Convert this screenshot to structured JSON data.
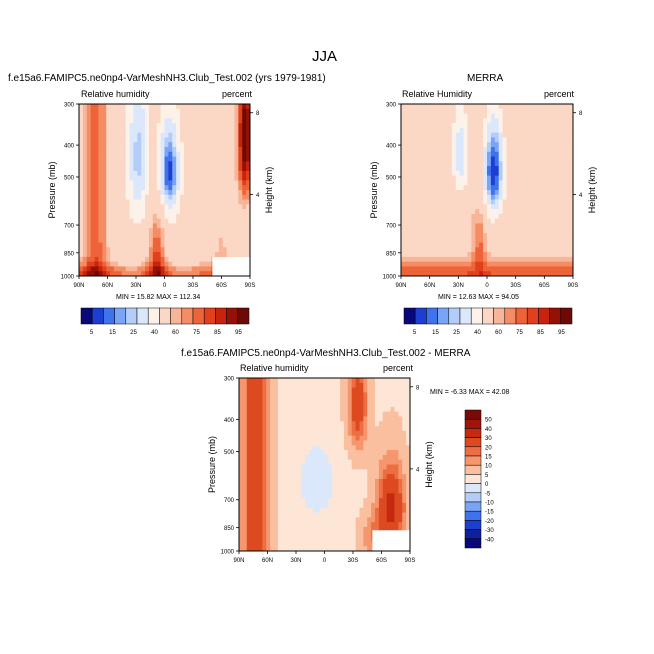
{
  "page_title": "JJA",
  "chart_data": [
    {
      "type": "heatmap",
      "name": "model",
      "title": "f.e15a6.FAMIPC5.ne0np4-VarMeshNH3.Club_Test.002 (yrs 1979-1981)",
      "left_label": "Relative humidity",
      "right_label": "percent",
      "ylabel": "Pressure (mb)",
      "y2label": "Height (km)",
      "x_ticks": [
        "90N",
        "60N",
        "30N",
        "0",
        "30S",
        "60S",
        "90S"
      ],
      "y_ticks": [
        "300",
        "400",
        "500",
        "700",
        "850",
        "1000"
      ],
      "y2_ticks": [
        "8",
        "4"
      ],
      "min_max_text": "MIN = 15.82   MAX = 112.34",
      "min": 15.82,
      "max": 112.34,
      "colorbar_labels": [
        "5",
        "15",
        "25",
        "40",
        "60",
        "75",
        "85",
        "95"
      ],
      "colors": [
        "#08087a",
        "#1d3fd1",
        "#3f73ec",
        "#7aa4f5",
        "#b4cdf8",
        "#dbe8fb",
        "#fdf2ea",
        "#fbd7c5",
        "#f8b598",
        "#f48c64",
        "#ee6338",
        "#e0401b",
        "#c8230e",
        "#951005",
        "#6e0a06"
      ]
    },
    {
      "type": "heatmap",
      "name": "merra",
      "title": "MERRA",
      "left_label": "Relative Humidity",
      "right_label": "percent",
      "ylabel": "Pressure (mb)",
      "y2label": "Height (km)",
      "x_ticks": [
        "90N",
        "60N",
        "30N",
        "0",
        "30S",
        "60S",
        "90S"
      ],
      "y_ticks": [
        "300",
        "400",
        "500",
        "700",
        "850",
        "1000"
      ],
      "y2_ticks": [
        "8",
        "4"
      ],
      "min_max_text": "MIN = 12.63   MAX = 94.05",
      "min": 12.63,
      "max": 94.05,
      "colorbar_labels": [
        "5",
        "15",
        "25",
        "40",
        "60",
        "75",
        "85",
        "95"
      ]
    },
    {
      "type": "heatmap",
      "name": "difference",
      "title": "f.e15a6.FAMIPC5.ne0np4-VarMeshNH3.Club_Test.002 - MERRA",
      "left_label": "Relative humidity",
      "right_label": "percent",
      "ylabel": "Pressure (mb)",
      "y2label": "Height (km)",
      "x_ticks": [
        "90N",
        "60N",
        "30N",
        "0",
        "30S",
        "60S",
        "90S"
      ],
      "y_ticks": [
        "300",
        "400",
        "500",
        "700",
        "850",
        "1000"
      ],
      "y2_ticks": [
        "8",
        "4"
      ],
      "min_max_text": "MIN = -6.33   MAX = 42.08",
      "min": -6.33,
      "max": 42.08,
      "colorbar_labels": [
        "50",
        "40",
        "30",
        "20",
        "15",
        "10",
        "5",
        "0",
        "-5",
        "-10",
        "-15",
        "-20",
        "-30",
        "-40",
        "-50"
      ],
      "colors": [
        "#7a0a06",
        "#a11409",
        "#c42a10",
        "#dd4a20",
        "#ec6e42",
        "#f5966d",
        "#f9bf9f",
        "#fde6d6",
        "#dbe8fb",
        "#b4cdf8",
        "#7aa4f5",
        "#3f73ec",
        "#1d3fd1",
        "#101f9c",
        "#08087a"
      ]
    }
  ]
}
